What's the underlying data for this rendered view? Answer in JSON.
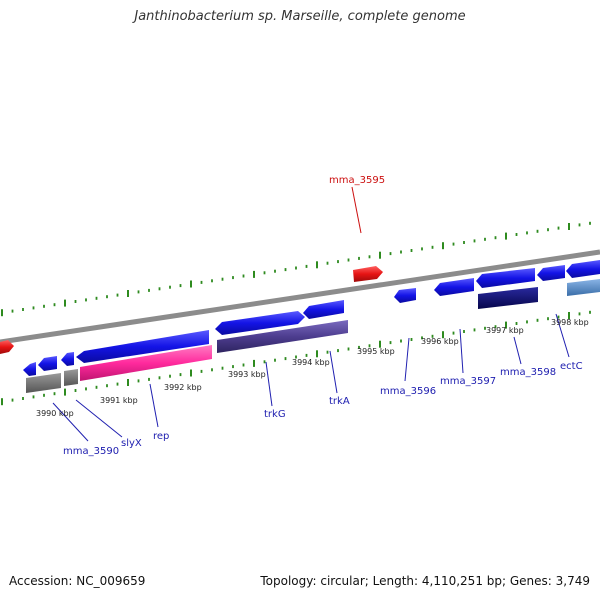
{
  "title": "Janthinobacterium sp. Marseille, complete genome",
  "footer": {
    "accession": "Accession: NC_009659",
    "stats": "Topology: circular; Length: 4,110,251 bp; Genes: 3,749"
  },
  "colors": {
    "backbone": "#8c8c8c",
    "tick": "#2e8b1f",
    "cds_forward": "#1414e6",
    "cds_reverse": "#e61414",
    "gene_grey": "#707070",
    "gene_pink": "#ff2a9d",
    "gene_purple": "#4d3d8f",
    "gene_navy": "#0a0a78",
    "gene_steel": "#4f88c6",
    "label_blue": "#2020b0",
    "label_red": "#cc1010"
  },
  "scale_labels": [
    "3990 kbp",
    "3991 kbp",
    "3992 kbp",
    "3993 kbp",
    "3994 kbp",
    "3995 kbp",
    "3996 kbp",
    "3997 kbp",
    "3998 kbp"
  ],
  "gene_labels": [
    {
      "text": "mma_3595",
      "color": "red"
    },
    {
      "text": "mma_3590",
      "color": "blue"
    },
    {
      "text": "slyX",
      "color": "blue"
    },
    {
      "text": "rep",
      "color": "blue"
    },
    {
      "text": "trkG",
      "color": "blue"
    },
    {
      "text": "trkA",
      "color": "blue"
    },
    {
      "text": "mma_3596",
      "color": "blue"
    },
    {
      "text": "mma_3597",
      "color": "blue"
    },
    {
      "text": "mma_3598",
      "color": "blue"
    },
    {
      "text": "ectC",
      "color": "blue"
    }
  ]
}
